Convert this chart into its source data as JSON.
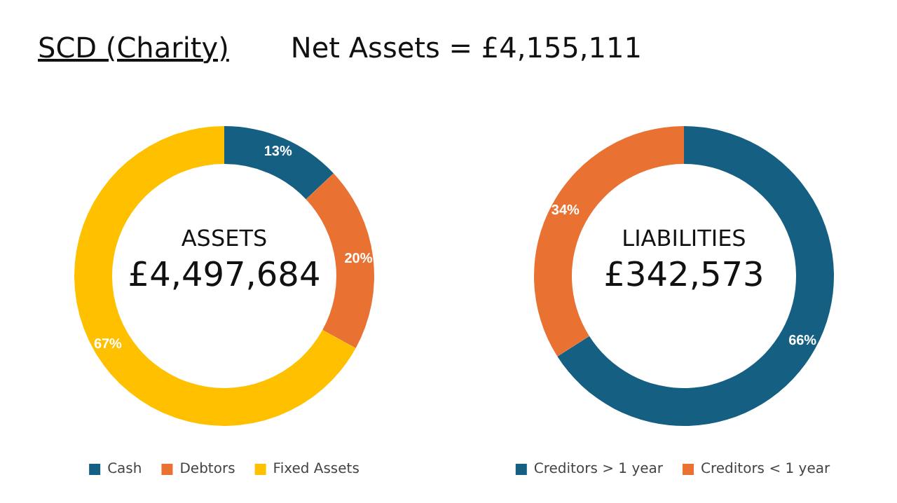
{
  "chart_data": [
    {
      "type": "donut",
      "title": "SCD (Charity)",
      "subtitle": "Net Assets = £4,155,111",
      "annotations": [
        "ASSETS",
        "£4,497,684"
      ],
      "categories": [
        "Cash",
        "Debtors",
        "Fixed Assets"
      ],
      "values": [
        13,
        20,
        67
      ],
      "value_labels": [
        "13%",
        "20%",
        "67%"
      ],
      "colors": [
        "#156082",
        "#e97132",
        "#ffc000"
      ],
      "legend": "bottom"
    },
    {
      "type": "donut",
      "annotations": [
        "LIABILITIES",
        "£342,573"
      ],
      "categories": [
        "Creditors > 1 year",
        "Creditors < 1 year"
      ],
      "values": [
        66,
        34
      ],
      "value_labels": [
        "66%",
        "34%"
      ],
      "colors": [
        "#156082",
        "#e97132"
      ],
      "legend": "bottom"
    }
  ]
}
